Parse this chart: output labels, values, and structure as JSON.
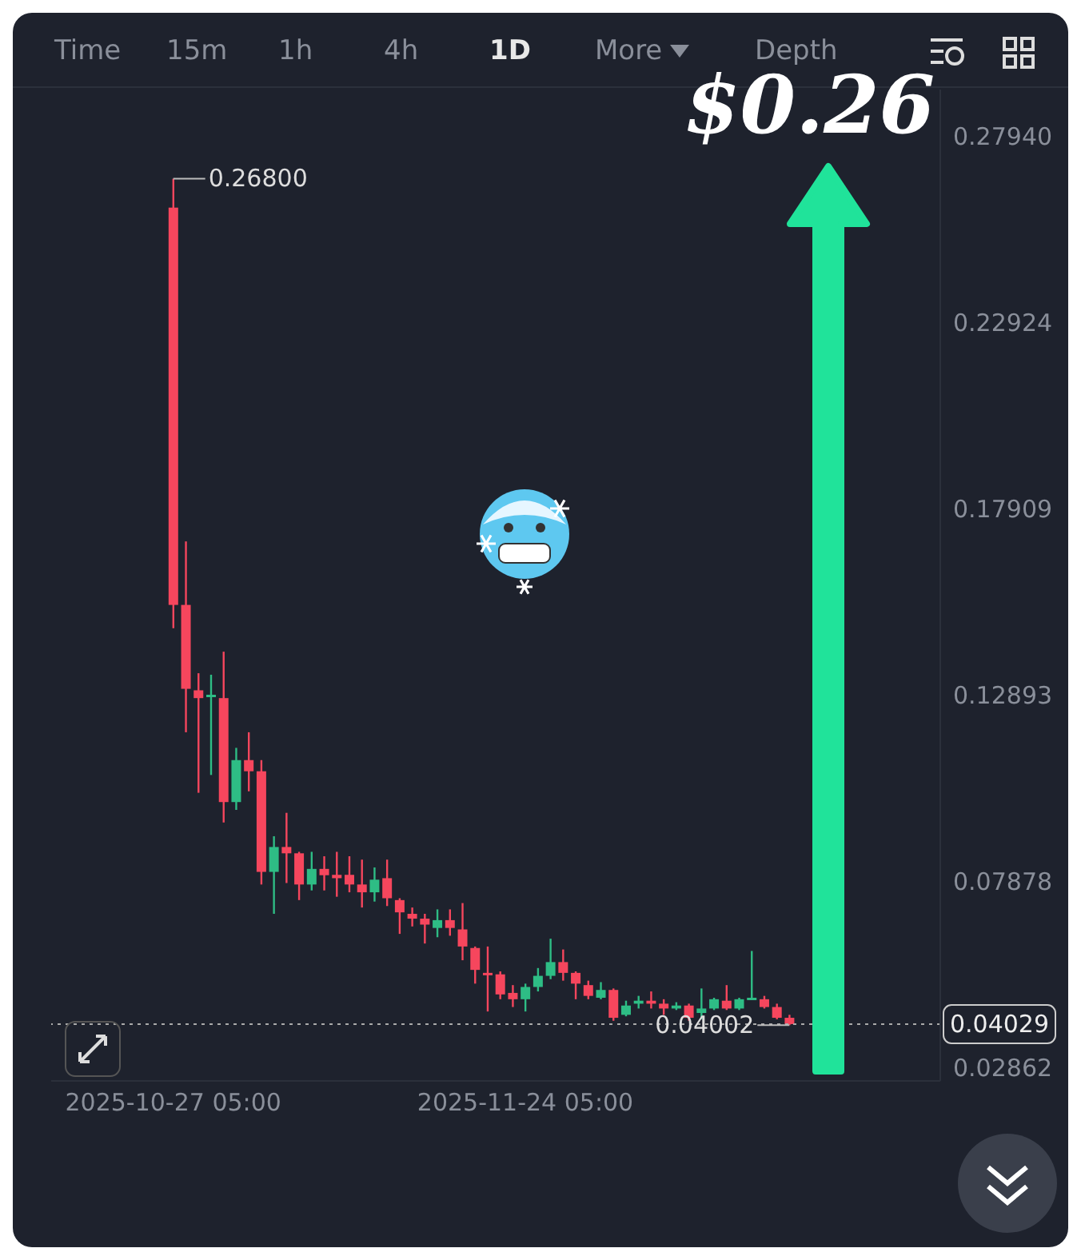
{
  "chart_data": {
    "type": "candlestick",
    "x": [
      "2025-10-27T05:00",
      "2025-10-28T05:00",
      "2025-10-29T05:00",
      "2025-10-30T05:00",
      "2025-10-31T05:00",
      "2025-11-01T05:00",
      "2025-11-02T05:00",
      "2025-11-03T05:00",
      "2025-11-04T05:00",
      "2025-11-05T05:00",
      "2025-11-06T05:00",
      "2025-11-07T05:00",
      "2025-11-08T05:00",
      "2025-11-09T05:00",
      "2025-11-10T05:00",
      "2025-11-11T05:00",
      "2025-11-12T05:00",
      "2025-11-13T05:00",
      "2025-11-14T05:00",
      "2025-11-15T05:00",
      "2025-11-16T05:00",
      "2025-11-17T05:00",
      "2025-11-18T05:00",
      "2025-11-19T05:00",
      "2025-11-20T05:00",
      "2025-11-21T05:00",
      "2025-11-22T05:00",
      "2025-11-23T05:00",
      "2025-11-24T05:00",
      "2025-11-25T05:00",
      "2025-11-26T05:00",
      "2025-11-27T05:00",
      "2025-11-28T05:00",
      "2025-11-29T05:00",
      "2025-11-30T05:00",
      "2025-12-01T05:00",
      "2025-12-02T05:00",
      "2025-12-03T05:00",
      "2025-12-04T05:00",
      "2025-12-05T05:00",
      "2025-12-06T05:00",
      "2025-12-07T05:00",
      "2025-12-08T05:00",
      "2025-12-09T05:00",
      "2025-12-10T05:00",
      "2025-12-11T05:00",
      "2025-12-12T05:00",
      "2025-12-13T05:00",
      "2025-12-14T05:00",
      "2025-12-15T05:00"
    ],
    "ohlc": [
      [
        0.2602,
        0.268,
        0.1469,
        0.1532
      ],
      [
        0.1532,
        0.1703,
        0.1189,
        0.1306
      ],
      [
        0.1302,
        0.1348,
        0.1026,
        0.1281
      ],
      [
        0.1285,
        0.1344,
        0.1074,
        0.129
      ],
      [
        0.1281,
        0.1406,
        0.0946,
        0.1001
      ],
      [
        0.1001,
        0.1147,
        0.098,
        0.1114
      ],
      [
        0.1114,
        0.1189,
        0.103,
        0.1084
      ],
      [
        0.1084,
        0.1114,
        0.0779,
        0.0813
      ],
      [
        0.0813,
        0.0909,
        0.07,
        0.088
      ],
      [
        0.088,
        0.0972,
        0.0783,
        0.0863
      ],
      [
        0.0863,
        0.0867,
        0.0737,
        0.0779
      ],
      [
        0.0779,
        0.0867,
        0.0763,
        0.0821
      ],
      [
        0.0821,
        0.0855,
        0.0763,
        0.0804
      ],
      [
        0.0805,
        0.0867,
        0.0746,
        0.0796
      ],
      [
        0.0805,
        0.0855,
        0.0758,
        0.0779
      ],
      [
        0.0779,
        0.0846,
        0.0717,
        0.0758
      ],
      [
        0.0758,
        0.0825,
        0.0733,
        0.0792
      ],
      [
        0.0796,
        0.0846,
        0.0721,
        0.0742
      ],
      [
        0.0737,
        0.0742,
        0.0646,
        0.0704
      ],
      [
        0.07,
        0.0717,
        0.0666,
        0.0687
      ],
      [
        0.0687,
        0.07,
        0.062,
        0.0671
      ],
      [
        0.0662,
        0.0712,
        0.0637,
        0.0683
      ],
      [
        0.0683,
        0.0712,
        0.0641,
        0.0662
      ],
      [
        0.0658,
        0.0729,
        0.0575,
        0.0612
      ],
      [
        0.0608,
        0.0612,
        0.0512,
        0.0549
      ],
      [
        0.0541,
        0.0612,
        0.0437,
        0.0537
      ],
      [
        0.0537,
        0.0545,
        0.047,
        0.0483
      ],
      [
        0.0487,
        0.0508,
        0.0449,
        0.047
      ],
      [
        0.047,
        0.0512,
        0.0437,
        0.0503
      ],
      [
        0.0503,
        0.0554,
        0.0491,
        0.0533
      ],
      [
        0.0533,
        0.0633,
        0.0524,
        0.057
      ],
      [
        0.057,
        0.0604,
        0.052,
        0.0541
      ],
      [
        0.0541,
        0.0545,
        0.047,
        0.0512
      ],
      [
        0.0508,
        0.052,
        0.047,
        0.0479
      ],
      [
        0.0474,
        0.0516,
        0.047,
        0.0495
      ],
      [
        0.0495,
        0.0499,
        0.0412,
        0.042
      ],
      [
        0.0428,
        0.0466,
        0.0424,
        0.0453
      ],
      [
        0.0458,
        0.0479,
        0.0445,
        0.0466
      ],
      [
        0.0466,
        0.0491,
        0.0445,
        0.0458
      ],
      [
        0.0458,
        0.047,
        0.0428,
        0.0445
      ],
      [
        0.0445,
        0.0462,
        0.0441,
        0.0453
      ],
      [
        0.0453,
        0.0458,
        0.0412,
        0.042
      ],
      [
        0.0433,
        0.0499,
        0.0416,
        0.0445
      ],
      [
        0.0445,
        0.0474,
        0.0441,
        0.047
      ],
      [
        0.0466,
        0.0508,
        0.0441,
        0.0445
      ],
      [
        0.0445,
        0.0474,
        0.0441,
        0.047
      ],
      [
        0.047,
        0.06,
        0.047,
        0.0474
      ],
      [
        0.047,
        0.0479,
        0.0445,
        0.0449
      ],
      [
        0.0449,
        0.0458,
        0.0416,
        0.042
      ],
      [
        0.042,
        0.0428,
        0.04002,
        0.0403
      ]
    ],
    "colors": [
      "#f6465d",
      "#f6465d",
      "#f6465d",
      "#2ebd85",
      "#f6465d",
      "#2ebd85",
      "#f6465d",
      "#f6465d",
      "#2ebd85",
      "#f6465d",
      "#f6465d",
      "#2ebd85",
      "#f6465d",
      "#f6465d",
      "#f6465d",
      "#f6465d",
      "#2ebd85",
      "#f6465d",
      "#f6465d",
      "#f6465d",
      "#f6465d",
      "#2ebd85",
      "#f6465d",
      "#f6465d",
      "#f6465d",
      "#f6465d",
      "#f6465d",
      "#f6465d",
      "#2ebd85",
      "#2ebd85",
      "#2ebd85",
      "#f6465d",
      "#f6465d",
      "#f6465d",
      "#2ebd85",
      "#f6465d",
      "#2ebd85",
      "#2ebd85",
      "#f6465d",
      "#f6465d",
      "#2ebd85",
      "#f6465d",
      "#2ebd85",
      "#2ebd85",
      "#f6465d",
      "#2ebd85",
      "#2ebd85",
      "#f6465d",
      "#f6465d",
      "#f6465d"
    ],
    "xlim": [
      "2025-10-17T12:00",
      "2025-12-27T05:00"
    ],
    "xticks": [
      {
        "value": "2025-10-27T05:00",
        "label": "2025-10-27 05:00"
      },
      {
        "value": "2025-11-24T05:00",
        "label": "2025-11-24 05:00"
      }
    ],
    "ylim": [
      0.025,
      0.292
    ],
    "yticks": [
      0.02862,
      0.07878,
      0.12893,
      0.17909,
      0.22924,
      {
        "value": 0.2794,
        "label": "0.27940"
      }
    ],
    "ref_lines": [
      {
        "axis": "y",
        "value": 0.04029,
        "label": "0.04029",
        "line_style": "dotted",
        "color": "#aaaaaa"
      }
    ],
    "annotations": [
      "Time",
      "15m",
      "1h",
      "4h",
      "1D",
      "More",
      "Depth",
      {
        "text": "0.26800",
        "x": "2025-10-27T05:00",
        "y": 0.268
      },
      {
        "text": "0.04002",
        "x": "2025-12-15T05:00",
        "y": 0.04002
      },
      "$0.26"
    ]
  }
}
